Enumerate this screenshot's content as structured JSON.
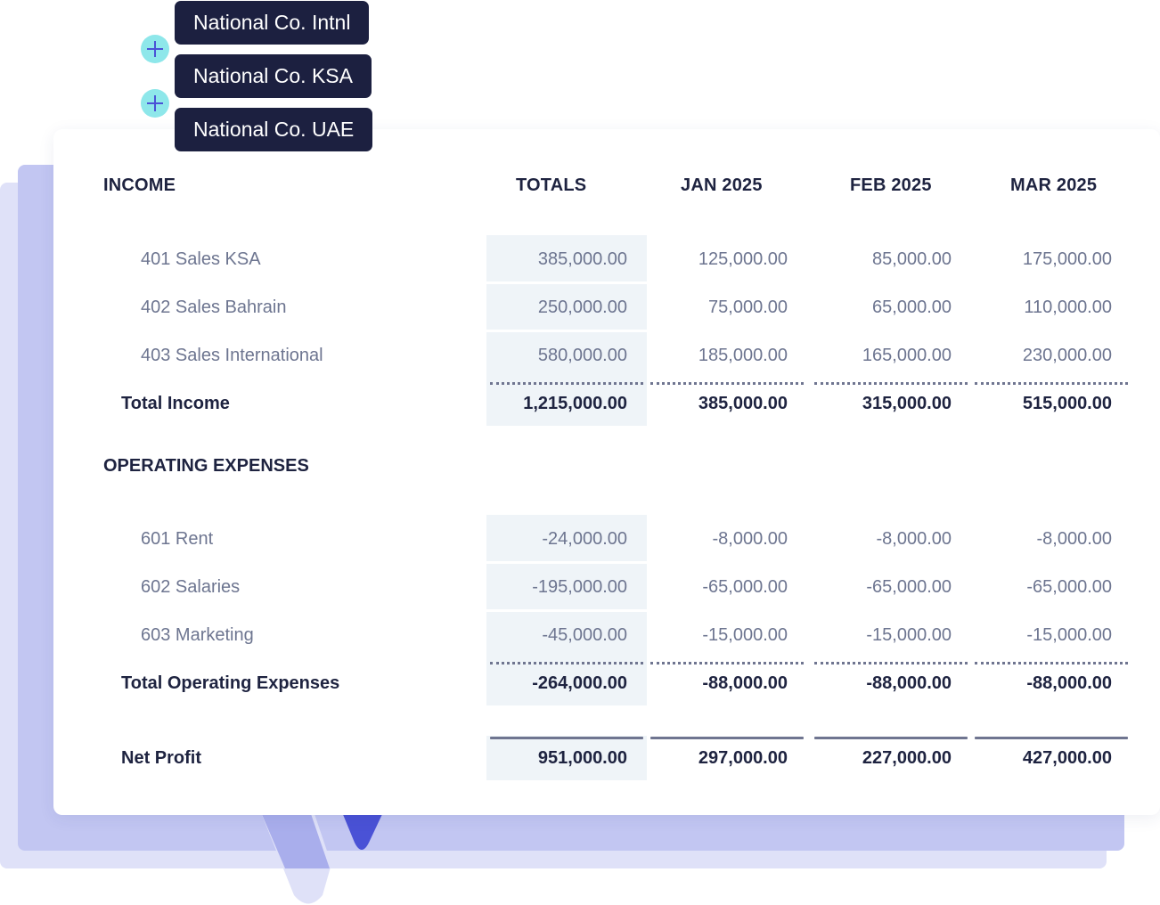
{
  "entities": [
    "National Co. Intnl",
    "National Co. KSA",
    "National Co. UAE"
  ],
  "headers": {
    "section": "INCOME",
    "totals": "TOTALS",
    "months": [
      "JAN 2025",
      "FEB 2025",
      "MAR 2025"
    ]
  },
  "income": {
    "rows": [
      {
        "label": "401 Sales KSA",
        "total": "385,000.00",
        "values": [
          "125,000.00",
          "85,000.00",
          "175,000.00"
        ]
      },
      {
        "label": "402 Sales Bahrain",
        "total": "250,000.00",
        "values": [
          "75,000.00",
          "65,000.00",
          "110,000.00"
        ]
      },
      {
        "label": "403 Sales International",
        "total": "580,000.00",
        "values": [
          "185,000.00",
          "165,000.00",
          "230,000.00"
        ]
      }
    ],
    "total": {
      "label": "Total Income",
      "total": "1,215,000.00",
      "values": [
        "385,000.00",
        "315,000.00",
        "515,000.00"
      ]
    }
  },
  "expenses": {
    "section": "OPERATING EXPENSES",
    "rows": [
      {
        "label": "601 Rent",
        "total": "-24,000.00",
        "values": [
          "-8,000.00",
          "-8,000.00",
          "-8,000.00"
        ]
      },
      {
        "label": "602 Salaries",
        "total": "-195,000.00",
        "values": [
          "-65,000.00",
          "-65,000.00",
          "-65,000.00"
        ]
      },
      {
        "label": "603 Marketing",
        "total": "-45,000.00",
        "values": [
          "-15,000.00",
          "-15,000.00",
          "-15,000.00"
        ]
      }
    ],
    "total": {
      "label": "Total Operating Expenses",
      "total": "-264,000.00",
      "values": [
        "-88,000.00",
        "-88,000.00",
        "-88,000.00"
      ]
    }
  },
  "net_profit": {
    "label": "Net Profit",
    "total": "951,000.00",
    "values": [
      "297,000.00",
      "227,000.00",
      "427,000.00"
    ]
  },
  "colors": {
    "accent": "#4a52d6",
    "entity_tag": "#1c2040",
    "plus_badge": "#8ee7ea",
    "totals_column": "#eff4f8"
  },
  "icons": {
    "plus": "plus-icon"
  }
}
